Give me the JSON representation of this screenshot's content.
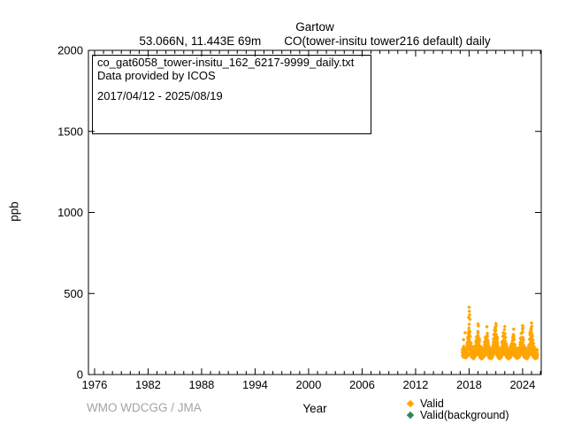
{
  "header": {
    "title": "Gartow",
    "subtitle_station": "53.066N, 11.443E 69m",
    "subtitle_param": "CO(tower-insitu tower216 default) daily"
  },
  "infobox": {
    "filename": "co_gat6058_tower-insitu_162_6217-9999_daily.txt",
    "provider": "Data provided by ICOS",
    "date_range": "2017/04/12 - 2025/08/19"
  },
  "footer": {
    "credit": "WMO WDCGG / JMA"
  },
  "legend": [
    {
      "label": "Valid",
      "color": "#FFA500"
    },
    {
      "label": "Valid(background)",
      "color": "#2E8B57"
    }
  ],
  "chart_data": {
    "type": "scatter",
    "title": "Gartow",
    "xlabel": "Year",
    "ylabel": "ppb",
    "xlim": [
      1975.31,
      2026.09
    ],
    "ylim": [
      0,
      2000
    ],
    "x_ticks": [
      1976,
      1982,
      1988,
      1994,
      2000,
      2006,
      2012,
      2018,
      2024
    ],
    "x_minor_step": 1,
    "y_ticks": [
      0,
      500,
      1000,
      1500,
      2000
    ],
    "grid": false,
    "legend_position": "bottom-right",
    "series": [
      {
        "name": "Valid",
        "color": "#FFA500",
        "marker": "diamond",
        "band": {
          "x_start": 2017.28,
          "x_step": 0.06,
          "points_per_step": 8,
          "minmax": [
            [
              115,
              178
            ],
            [
              108,
              165
            ],
            [
              118,
              185
            ],
            [
              104,
              170
            ],
            [
              112,
              160
            ],
            [
              98,
              158
            ],
            [
              106,
              172
            ],
            [
              101,
              150
            ],
            [
              110,
              190
            ],
            [
              118,
              205
            ],
            [
              122,
              235
            ],
            [
              128,
              268
            ],
            [
              132,
              340
            ],
            [
              126,
              315
            ],
            [
              121,
              262
            ],
            [
              116,
              228
            ],
            [
              112,
              200
            ],
            [
              107,
              182
            ],
            [
              103,
              168
            ],
            [
              111,
              175
            ],
            [
              97,
              156
            ],
            [
              105,
              163
            ],
            [
              100,
              152
            ],
            [
              108,
              170
            ],
            [
              114,
              188
            ],
            [
              120,
              212
            ],
            [
              125,
              240
            ],
            [
              129,
              268
            ],
            [
              133,
              290
            ],
            [
              128,
              295
            ],
            [
              122,
              258
            ],
            [
              117,
              230
            ],
            [
              110,
              198
            ],
            [
              105,
              178
            ],
            [
              100,
              165
            ],
            [
              109,
              172
            ],
            [
              96,
              154
            ],
            [
              104,
              161
            ],
            [
              99,
              150
            ],
            [
              107,
              168
            ],
            [
              113,
              186
            ],
            [
              119,
              208
            ],
            [
              124,
              238
            ],
            [
              130,
              262
            ],
            [
              127,
              275
            ],
            [
              132,
              280
            ],
            [
              125,
              255
            ],
            [
              118,
              225
            ],
            [
              111,
              195
            ],
            [
              106,
              176
            ],
            [
              101,
              164
            ],
            [
              110,
              170
            ],
            [
              98,
              155
            ],
            [
              103,
              162
            ],
            [
              100,
              151
            ],
            [
              108,
              169
            ],
            [
              112,
              180
            ],
            [
              118,
              200
            ],
            [
              123,
              228
            ],
            [
              128,
              255
            ],
            [
              131,
              278
            ],
            [
              134,
              292
            ],
            [
              129,
              300
            ],
            [
              123,
              265
            ],
            [
              117,
              232
            ],
            [
              110,
              200
            ],
            [
              104,
              178
            ],
            [
              100,
              166
            ],
            [
              108,
              173
            ],
            [
              97,
              153
            ],
            [
              105,
              160
            ],
            [
              101,
              150
            ],
            [
              109,
              167
            ],
            [
              114,
              184
            ],
            [
              120,
              206
            ],
            [
              125,
              236
            ],
            [
              129,
              260
            ],
            [
              132,
              274
            ],
            [
              128,
              285
            ],
            [
              126,
              280
            ],
            [
              121,
              250
            ],
            [
              115,
              222
            ],
            [
              109,
              192
            ],
            [
              103,
              174
            ],
            [
              99,
              162
            ],
            [
              107,
              170
            ],
            [
              96,
              152
            ],
            [
              102,
              159
            ],
            [
              100,
              149
            ],
            [
              106,
              166
            ],
            [
              111,
              182
            ],
            [
              117,
              202
            ],
            [
              122,
              230
            ],
            [
              127,
              252
            ],
            [
              130,
              264
            ],
            [
              125,
              268
            ],
            [
              120,
              244
            ],
            [
              114,
              216
            ],
            [
              108,
              188
            ],
            [
              102,
              172
            ],
            [
              98,
              160
            ],
            [
              106,
              168
            ],
            [
              95,
              150
            ],
            [
              103,
              158
            ],
            [
              99,
              148
            ],
            [
              107,
              165
            ],
            [
              112,
              181
            ],
            [
              118,
              203
            ],
            [
              123,
              231
            ],
            [
              128,
              257
            ],
            [
              131,
              276
            ],
            [
              133,
              288
            ],
            [
              129,
              292
            ],
            [
              122,
              260
            ],
            [
              116,
              228
            ],
            [
              109,
              196
            ],
            [
              104,
              176
            ],
            [
              100,
              163
            ],
            [
              108,
              171
            ],
            [
              97,
              152
            ],
            [
              104,
              160
            ],
            [
              100,
              150
            ],
            [
              107,
              166
            ],
            [
              113,
              183
            ],
            [
              119,
              205
            ],
            [
              124,
              234
            ],
            [
              129,
              258
            ],
            [
              132,
              279
            ],
            [
              130,
              296
            ],
            [
              127,
              305
            ],
            [
              121,
              262
            ],
            [
              115,
              230
            ],
            [
              108,
              196
            ],
            [
              103,
              176
            ],
            [
              99,
              163
            ],
            [
              106,
              170
            ],
            [
              96,
              152
            ],
            [
              103,
              159
            ],
            [
              99,
              149
            ],
            [
              105,
              161
            ]
          ]
        },
        "spikes": [
          [
            2017.38,
            215
          ],
          [
            2017.55,
            258
          ],
          [
            2017.95,
            352
          ],
          [
            2018.0,
            415
          ],
          [
            2018.02,
            390
          ],
          [
            2018.05,
            368
          ],
          [
            2018.1,
            340
          ],
          [
            2019.0,
            312
          ],
          [
            2019.04,
            300
          ],
          [
            2020.0,
            295
          ],
          [
            2020.96,
            288
          ],
          [
            2021.0,
            315
          ],
          [
            2021.04,
            302
          ],
          [
            2022.0,
            296
          ],
          [
            2023.0,
            280
          ],
          [
            2024.0,
            302
          ],
          [
            2024.04,
            288
          ],
          [
            2025.0,
            318
          ],
          [
            2025.04,
            298
          ]
        ]
      },
      {
        "name": "Valid(background)",
        "color": "#2E8B57",
        "marker": "diamond",
        "points": []
      }
    ]
  }
}
